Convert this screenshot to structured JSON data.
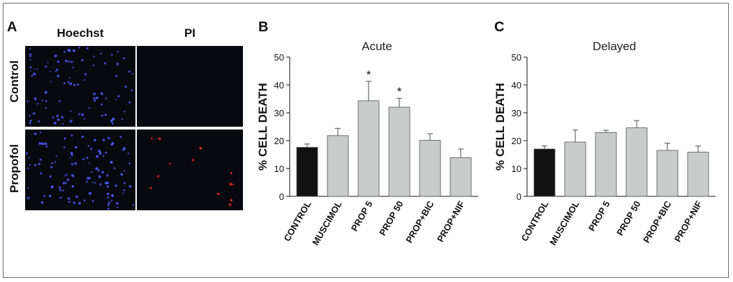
{
  "panel_a": {
    "letter": "A",
    "column_headers": [
      "Hoechst",
      "PI"
    ],
    "row_headers": [
      "Control",
      "Propofol"
    ],
    "colors": {
      "hoechst_dot": "#4a5cff",
      "pi_dot": "#e0281e",
      "background": "#08080f"
    },
    "pi_signal_level": {
      "control": "none",
      "propofol": "sparse"
    }
  },
  "chart_data": [
    {
      "letter": "B",
      "type": "bar",
      "title": "Acute",
      "ylabel": "% CELL DEATH",
      "xlabel": "",
      "ylim": [
        0,
        50
      ],
      "yticks": [
        0,
        10,
        20,
        30,
        40,
        50
      ],
      "grid": false,
      "categories": [
        "CONTROL",
        "MUSCIMOL",
        "PROP 5",
        "PROP 50",
        "PROP+BIC",
        "PROP+NIF"
      ],
      "values": [
        17.6,
        21.8,
        34.3,
        32.0,
        20.1,
        13.9
      ],
      "errors": [
        1.2,
        2.6,
        7.0,
        3.2,
        2.4,
        3.1
      ],
      "significance": [
        "",
        "",
        "*",
        "*",
        "",
        ""
      ],
      "colors": [
        "#111111",
        "#c9ccca",
        "#c9ccca",
        "#c9ccca",
        "#c9ccca",
        "#c9ccca"
      ]
    },
    {
      "letter": "C",
      "type": "bar",
      "title": "Delayed",
      "ylabel": "% CELL DEATH",
      "xlabel": "",
      "ylim": [
        0,
        50
      ],
      "yticks": [
        0,
        10,
        20,
        30,
        40,
        50
      ],
      "grid": false,
      "categories": [
        "CONTROL",
        "MUSCIMOL",
        "PROP 5",
        "PROP 50",
        "PROP+BIC",
        "PROP+NIF"
      ],
      "values": [
        17.0,
        19.5,
        22.9,
        24.6,
        16.5,
        15.9
      ],
      "errors": [
        1.1,
        4.3,
        0.8,
        2.6,
        2.6,
        2.2
      ],
      "significance": [
        "",
        "",
        "",
        "",
        "",
        ""
      ],
      "colors": [
        "#111111",
        "#c9ccca",
        "#c9ccca",
        "#c9ccca",
        "#c9ccca",
        "#c9ccca"
      ]
    }
  ]
}
